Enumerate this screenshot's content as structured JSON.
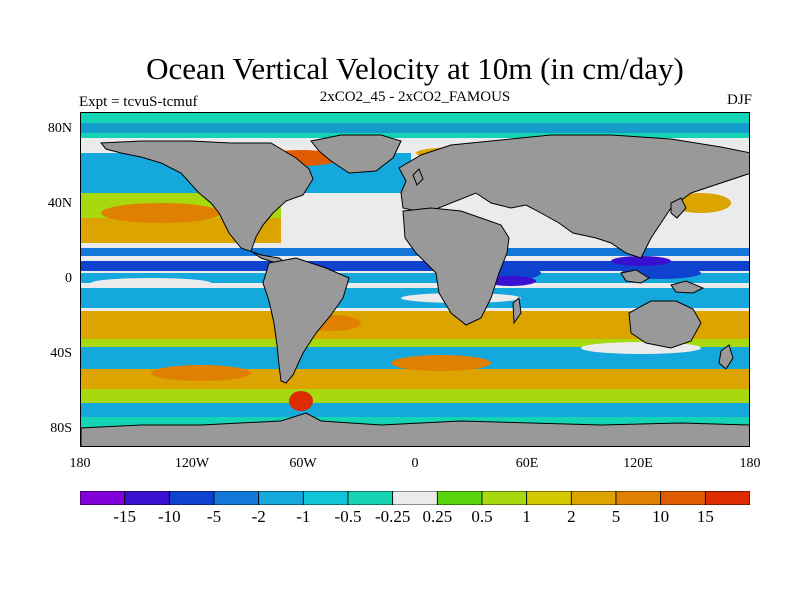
{
  "title": "Ocean Vertical Velocity at 10m (in cm/day)",
  "subtitle": "2xCO2_45 - 2xCO2_FAMOUS",
  "experiment": "Expt = tcvuS-tcmuf",
  "season": "DJF",
  "map": {
    "projection": "cylindrical-equidistant",
    "land_color": "#999999",
    "lat_labels": [
      "80N",
      "40N",
      "0",
      "40S",
      "80S"
    ],
    "lon_labels": [
      "180",
      "120W",
      "60W",
      "0",
      "60E",
      "120E",
      "180"
    ]
  },
  "colorbar": {
    "labels": [
      "-15",
      "-10",
      "-5",
      "-2",
      "-1",
      "-0.5",
      "-0.25",
      "0.25",
      "0.5",
      "1",
      "2",
      "5",
      "10",
      "15"
    ],
    "colors": [
      "#7f00d9",
      "#3a10d0",
      "#1042d0",
      "#1478d8",
      "#14a8dc",
      "#12c4d8",
      "#14d4b4",
      "#ebebeb",
      "#5ad40c",
      "#a8d80e",
      "#d4c800",
      "#dca400",
      "#e08000",
      "#e05c00",
      "#dc2c00"
    ]
  }
}
